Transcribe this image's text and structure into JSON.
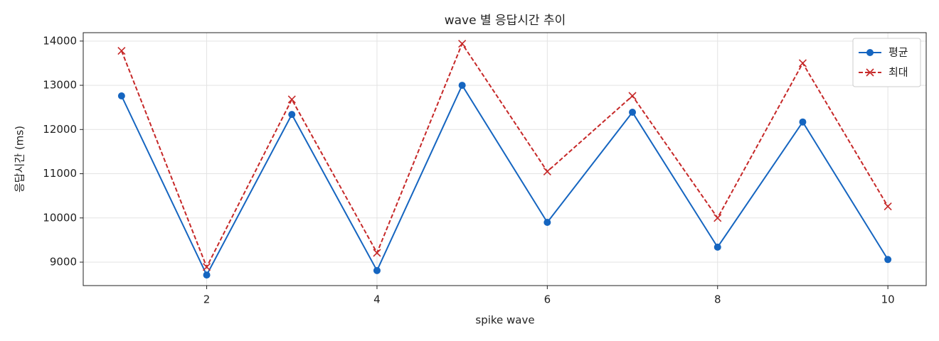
{
  "chart_data": {
    "type": "line",
    "title": "wave 별 응답시간 추이",
    "x_label": "spike wave",
    "y_label": "응답시간 (ms)",
    "x": [
      1,
      2,
      3,
      4,
      5,
      6,
      7,
      8,
      9,
      10
    ],
    "series": [
      {
        "name": "평균",
        "color": "#1565c0",
        "marker": "o",
        "linestyle": "solid",
        "values": [
          12760,
          8710,
          12340,
          8810,
          13000,
          9900,
          12390,
          9340,
          12170,
          9060
        ]
      },
      {
        "name": "최대",
        "color": "#c62828",
        "marker": "x",
        "linestyle": "dashed",
        "values": [
          13780,
          8890,
          12680,
          9210,
          13940,
          11050,
          12760,
          10000,
          13500,
          10260
        ]
      }
    ],
    "xlim": [
      0.55,
      10.45
    ],
    "xticks": [
      2,
      4,
      6,
      8,
      10
    ],
    "ylim": [
      8470,
      14190
    ],
    "yticks": [
      9000,
      10000,
      11000,
      12000,
      13000,
      14000
    ],
    "grid": true,
    "legend": "upper right"
  }
}
